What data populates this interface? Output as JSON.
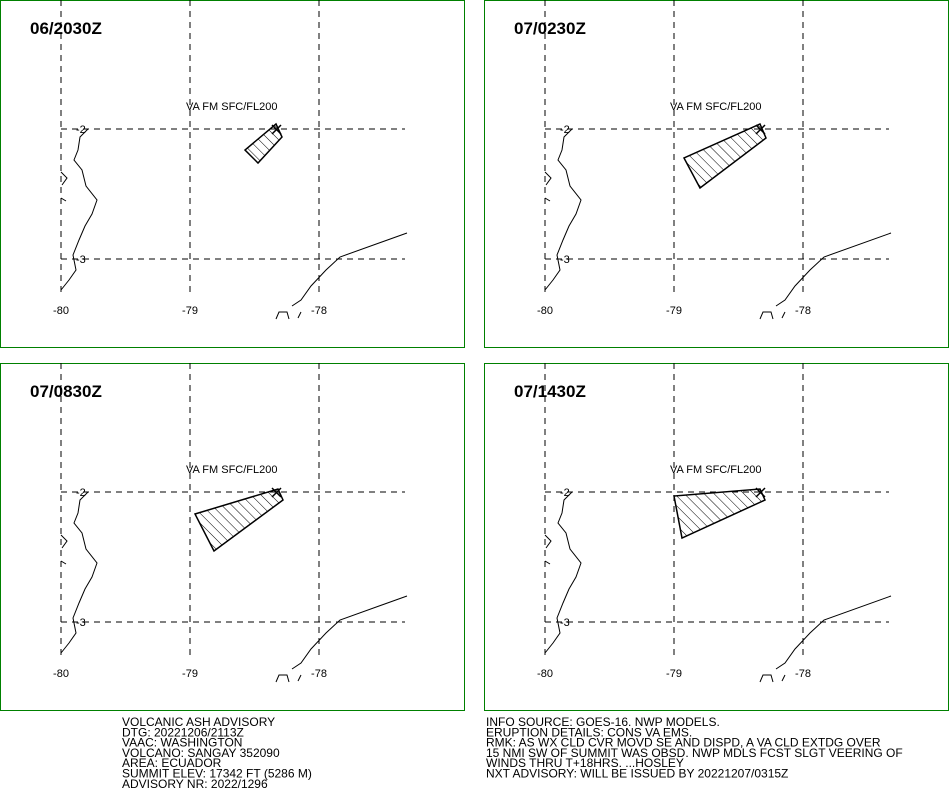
{
  "panels": [
    {
      "time": "06/2030Z",
      "label": "VA FM SFC/FL200"
    },
    {
      "time": "07/0230Z",
      "label": "VA FM SFC/FL200"
    },
    {
      "time": "07/0830Z",
      "label": "VA FM SFC/FL200"
    },
    {
      "time": "07/1430Z",
      "label": "VA FM SFC/FL200"
    }
  ],
  "lon_labels": [
    "-80",
    "-79",
    "-78"
  ],
  "lat_labels": [
    "-2",
    "-3"
  ],
  "advisory_left": [
    "VOLCANIC ASH ADVISORY",
    "DTG: 20221206/2113Z",
    "VAAC: WASHINGTON",
    "VOLCANO: SANGAY 352090",
    "AREA: ECUADOR",
    "SUMMIT ELEV: 17342 FT (5286 M)",
    "ADVISORY NR: 2022/1296"
  ],
  "advisory_right": [
    "INFO SOURCE: GOES-16. NWP MODELS.",
    "ERUPTION DETAILS: CONS VA EMS.",
    "RMK: AS WX CLD CVR MOVD SE AND DISPD, A VA CLD EXTDG OVER",
    "15 NMI SW OF SUMMIT WAS OBSD. NWP MDLS FCST SLGT VEERING OF",
    "WINDS THRU T+18HRS. ...HOSLEY",
    "NXT ADVISORY: WILL BE ISSUED BY 20221207/0315Z"
  ]
}
